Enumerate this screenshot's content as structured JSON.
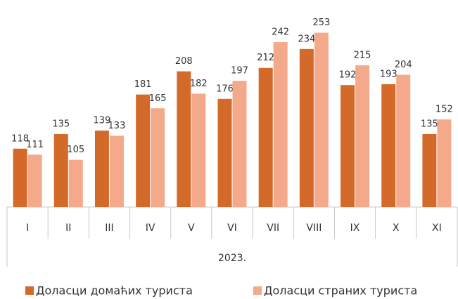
{
  "chart_data": {
    "type": "bar",
    "categories": [
      "I",
      "II",
      "III",
      "IV",
      "V",
      "VI",
      "VII",
      "VIII",
      "IX",
      "X",
      "XI"
    ],
    "group_label": "2023.",
    "series": [
      {
        "name": "Доласци домаћих туриста",
        "color": "#d46a2a",
        "values": [
          118,
          135,
          139,
          181,
          208,
          176,
          212,
          234,
          192,
          193,
          135
        ]
      },
      {
        "name": "Доласци страних туриста",
        "color": "#f4a98a",
        "values": [
          111,
          105,
          133,
          165,
          182,
          197,
          242,
          253,
          215,
          204,
          152
        ]
      }
    ],
    "ylim": [
      50,
      260
    ],
    "legend": "bottom"
  }
}
